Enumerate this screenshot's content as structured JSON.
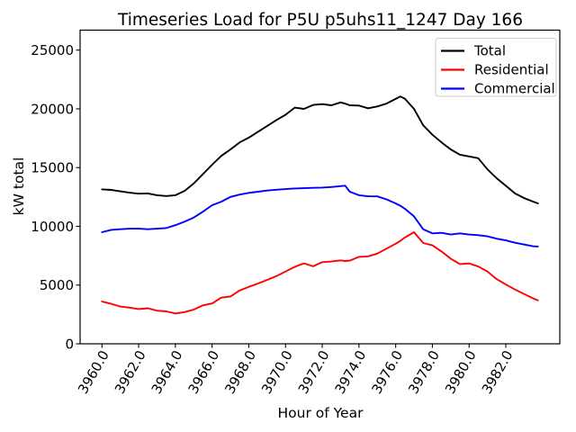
{
  "chart_data": {
    "type": "line",
    "title": "Timeseries Load for P5U p5uhs11_1247  Day 166",
    "xlabel": "Hour of Year",
    "ylabel": "kW total",
    "xlim": [
      3958.81,
      3984.94
    ],
    "ylim": [
      0,
      26700
    ],
    "grid": false,
    "legend_position": "upper right",
    "xtick_labels": [
      "3960.0",
      "3962.0",
      "3964.0",
      "3966.0",
      "3968.0",
      "3970.0",
      "3972.0",
      "3974.0",
      "3976.0",
      "3978.0",
      "3980.0",
      "3982.0"
    ],
    "xtick_values": [
      3960,
      3962,
      3964,
      3966,
      3968,
      3970,
      3972,
      3974,
      3976,
      3978,
      3980,
      3982
    ],
    "ytick_labels": [
      "0",
      "5000",
      "10000",
      "15000",
      "20000",
      "25000"
    ],
    "ytick_values": [
      0,
      5000,
      10000,
      15000,
      20000,
      25000
    ],
    "x": [
      3960.0,
      3960.5,
      3961.0,
      3961.5,
      3962.0,
      3962.5,
      3963.0,
      3963.5,
      3964.0,
      3964.5,
      3965.0,
      3965.5,
      3966.0,
      3966.5,
      3967.0,
      3967.5,
      3968.0,
      3968.5,
      3969.0,
      3969.5,
      3970.0,
      3970.5,
      3971.0,
      3971.5,
      3972.0,
      3972.5,
      3973.0,
      3973.25,
      3973.5,
      3974.0,
      3974.5,
      3975.0,
      3975.5,
      3976.0,
      3976.25,
      3976.5,
      3977.0,
      3977.5,
      3978.0,
      3978.5,
      3979.0,
      3979.5,
      3980.0,
      3980.5,
      3981.0,
      3981.5,
      3982.0,
      3982.5,
      3983.0,
      3983.5,
      3983.75
    ],
    "series": [
      {
        "name": "Total",
        "color": "#000000",
        "values": [
          13150,
          13100,
          12980,
          12860,
          12780,
          12800,
          12650,
          12580,
          12650,
          13020,
          13650,
          14450,
          15250,
          16000,
          16550,
          17150,
          17550,
          18050,
          18550,
          19050,
          19500,
          20100,
          20000,
          20330,
          20400,
          20300,
          20550,
          20450,
          20300,
          20280,
          20050,
          20200,
          20450,
          20850,
          21050,
          20870,
          20000,
          18600,
          17800,
          17150,
          16550,
          16100,
          15950,
          15800,
          14850,
          14100,
          13450,
          12800,
          12400,
          12100,
          11950
        ]
      },
      {
        "name": "Residential",
        "color": "#ff0000",
        "values": [
          3600,
          3400,
          3170,
          3080,
          2960,
          3030,
          2820,
          2760,
          2580,
          2700,
          2910,
          3270,
          3430,
          3930,
          4030,
          4540,
          4850,
          5130,
          5440,
          5760,
          6150,
          6550,
          6850,
          6600,
          6950,
          7000,
          7100,
          7050,
          7080,
          7400,
          7450,
          7680,
          8100,
          8520,
          8750,
          9050,
          9500,
          8580,
          8380,
          7860,
          7250,
          6790,
          6840,
          6580,
          6150,
          5510,
          5050,
          4620,
          4240,
          3860,
          3700
        ]
      },
      {
        "name": "Commercial",
        "color": "#0000ff",
        "values": [
          9500,
          9700,
          9750,
          9800,
          9800,
          9750,
          9800,
          9850,
          10100,
          10400,
          10750,
          11250,
          11800,
          12100,
          12500,
          12700,
          12850,
          12950,
          13050,
          13120,
          13170,
          13220,
          13250,
          13280,
          13300,
          13350,
          13420,
          13460,
          12950,
          12650,
          12560,
          12550,
          12300,
          11950,
          11750,
          11500,
          10850,
          9750,
          9400,
          9450,
          9300,
          9400,
          9300,
          9250,
          9150,
          8950,
          8800,
          8600,
          8450,
          8300,
          8280
        ]
      }
    ]
  }
}
